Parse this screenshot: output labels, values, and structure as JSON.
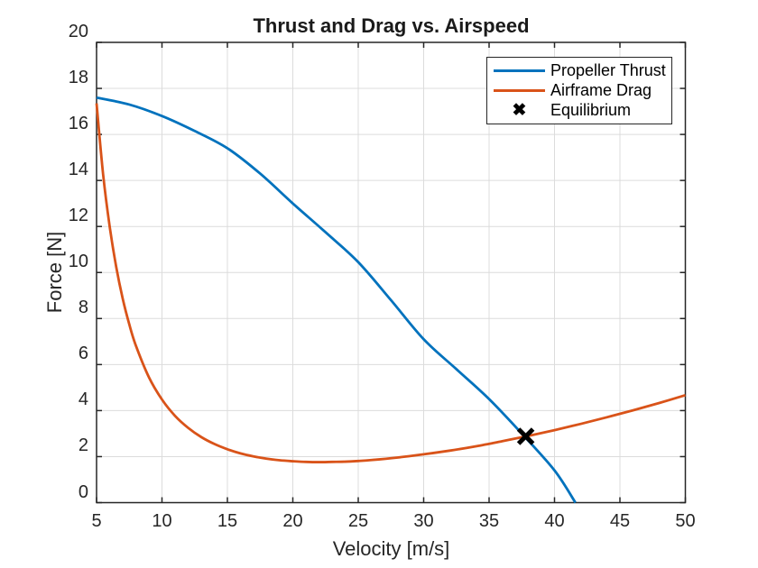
{
  "figure": {
    "title": "Thrust and Drag vs. Airspeed",
    "xlabel": "Velocity [m/s]",
    "ylabel": "Force [N]"
  },
  "legend": {
    "position": "northeast",
    "items": [
      {
        "label": "Propeller Thrust",
        "marker": "line",
        "color": "#0072BD"
      },
      {
        "label": "Airframe Drag",
        "marker": "line",
        "color": "#D95319"
      },
      {
        "label": "Equilibrium",
        "marker": "x",
        "color": "#000000"
      }
    ]
  },
  "chart_data": {
    "type": "line",
    "title": "Thrust and Drag vs. Airspeed",
    "xlabel": "Velocity [m/s]",
    "ylabel": "Force [N]",
    "xlim": [
      5,
      50
    ],
    "ylim": [
      0,
      20
    ],
    "x_ticks": [
      5,
      10,
      15,
      20,
      25,
      30,
      35,
      40,
      45,
      50
    ],
    "y_ticks": [
      0,
      2,
      4,
      6,
      8,
      10,
      12,
      14,
      16,
      18,
      20
    ],
    "grid": true,
    "series": [
      {
        "name": "Propeller Thrust",
        "color": "#0072BD",
        "points": [
          [
            5,
            17.6
          ],
          [
            7.5,
            17.3
          ],
          [
            10,
            16.8
          ],
          [
            12.5,
            16.15
          ],
          [
            15,
            15.4
          ],
          [
            17.5,
            14.3
          ],
          [
            20,
            13.0
          ],
          [
            22.5,
            11.75
          ],
          [
            25,
            10.45
          ],
          [
            27.5,
            8.8
          ],
          [
            30,
            7.1
          ],
          [
            32.5,
            5.8
          ],
          [
            35,
            4.5
          ],
          [
            37.5,
            3.0
          ],
          [
            40,
            1.4
          ],
          [
            41.6,
            0
          ]
        ]
      },
      {
        "name": "Airframe Drag",
        "color": "#D95319",
        "points": [
          [
            5,
            17.35
          ],
          [
            5.5,
            14.27
          ],
          [
            6,
            12.01
          ],
          [
            6.5,
            10.25
          ],
          [
            7,
            8.86
          ],
          [
            7.5,
            7.75
          ],
          [
            8,
            6.83
          ],
          [
            9,
            5.45
          ],
          [
            10,
            4.48
          ],
          [
            11,
            3.77
          ],
          [
            12,
            3.25
          ],
          [
            13,
            2.85
          ],
          [
            14,
            2.55
          ],
          [
            15,
            2.32
          ],
          [
            16,
            2.14
          ],
          [
            17,
            2.01
          ],
          [
            18,
            1.91
          ],
          [
            19,
            1.84
          ],
          [
            20,
            1.8
          ],
          [
            21,
            1.77
          ],
          [
            22,
            1.76
          ],
          [
            23,
            1.77
          ],
          [
            24,
            1.78
          ],
          [
            25,
            1.81
          ],
          [
            26,
            1.85
          ],
          [
            28,
            1.96
          ],
          [
            30,
            2.1
          ],
          [
            32,
            2.26
          ],
          [
            34,
            2.45
          ],
          [
            36,
            2.67
          ],
          [
            38,
            2.9
          ],
          [
            40,
            3.15
          ],
          [
            42,
            3.42
          ],
          [
            44,
            3.71
          ],
          [
            46,
            4.01
          ],
          [
            48,
            4.33
          ],
          [
            50,
            4.67
          ]
        ]
      }
    ],
    "markers": [
      {
        "name": "Equilibrium",
        "x": 37.8,
        "y": 2.88,
        "shape": "x",
        "color": "#000000"
      }
    ]
  },
  "style": {
    "grid_color": "#dcdcdc",
    "axis_color": "#262626",
    "background": "#ffffff",
    "legend_x_glyph": "✖"
  }
}
